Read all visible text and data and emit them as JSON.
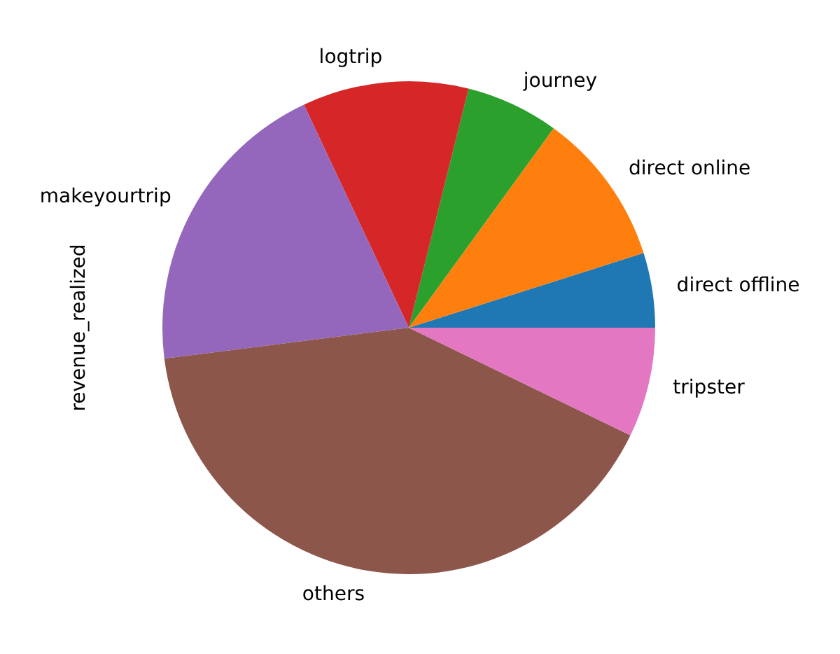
{
  "chart_data": {
    "type": "pie",
    "ylabel": "revenue_realized",
    "categories": [
      "direct offline",
      "direct online",
      "journey",
      "logtrip",
      "makeyourtrip",
      "others",
      "tripster"
    ],
    "values": [
      4.9,
      10.1,
      6.1,
      10.9,
      20.0,
      40.8,
      7.2
    ],
    "colors": [
      "#1f77b4",
      "#ff7f0e",
      "#2ca02c",
      "#d62728",
      "#9467bd",
      "#8c564b",
      "#e377c2"
    ]
  }
}
